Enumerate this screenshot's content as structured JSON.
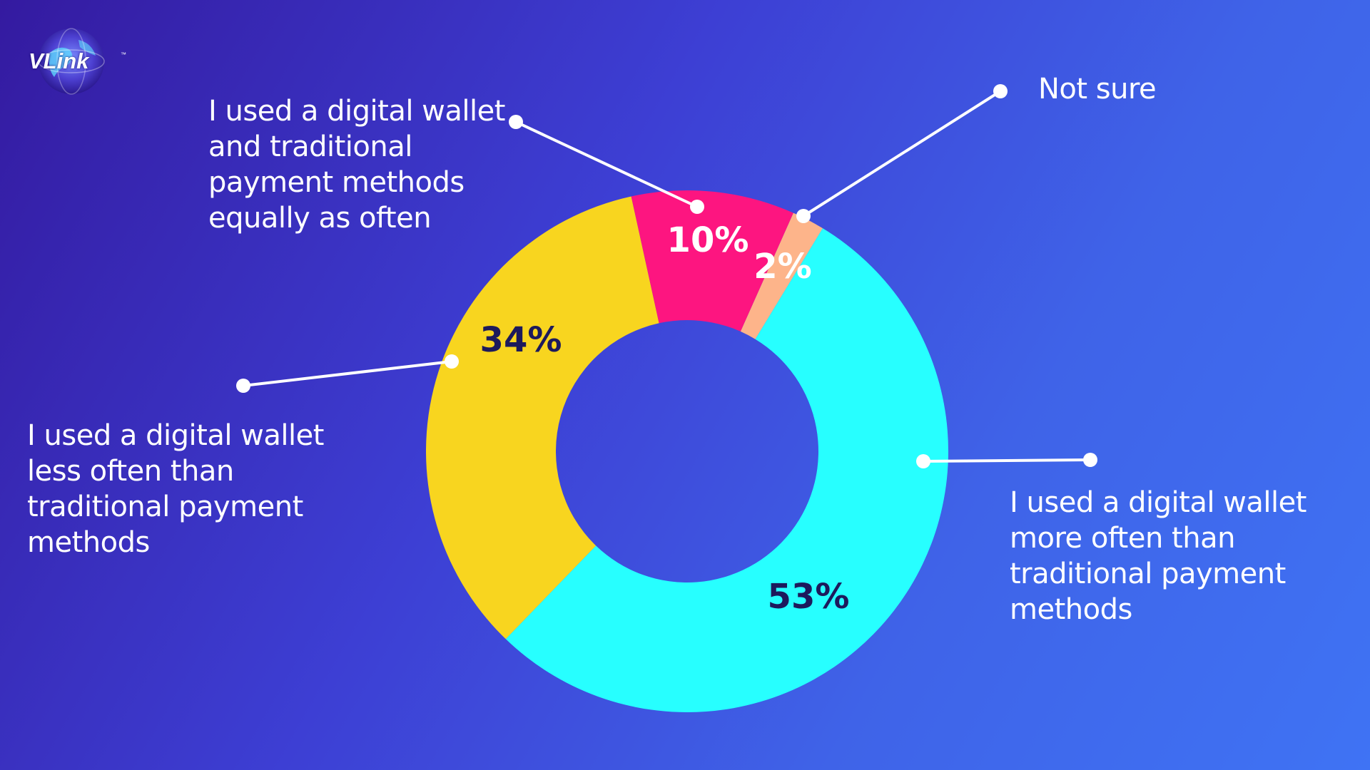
{
  "brand": {
    "logo_text": "VLink",
    "trademark": "™"
  },
  "colors": {
    "background_start": "#341aa0",
    "background_end": "#3f73f4",
    "text": "#ffffff",
    "dark_label": "#1d1a5c"
  },
  "chart_data": {
    "type": "pie",
    "donut": true,
    "slices": [
      {
        "label": "I used a digital wallet more often than traditional payment methods",
        "value": 53,
        "value_label": "53%",
        "color": "#27ffff",
        "value_label_color": "#1d1a5c"
      },
      {
        "label": "I used a digital wallet less often than traditional payment methods",
        "value": 34,
        "value_label": "34%",
        "color": "#f8d51f",
        "value_label_color": "#1d1a5c"
      },
      {
        "label": "I used a digital wallet and traditional payment methods equally as often",
        "value": 10,
        "value_label": "10%",
        "color": "#fd1580",
        "value_label_color": "#ffffff"
      },
      {
        "label": "Not sure",
        "value": 2,
        "value_label": "2%",
        "color": "#fdb48a",
        "value_label_color": "#ffffff"
      }
    ]
  }
}
